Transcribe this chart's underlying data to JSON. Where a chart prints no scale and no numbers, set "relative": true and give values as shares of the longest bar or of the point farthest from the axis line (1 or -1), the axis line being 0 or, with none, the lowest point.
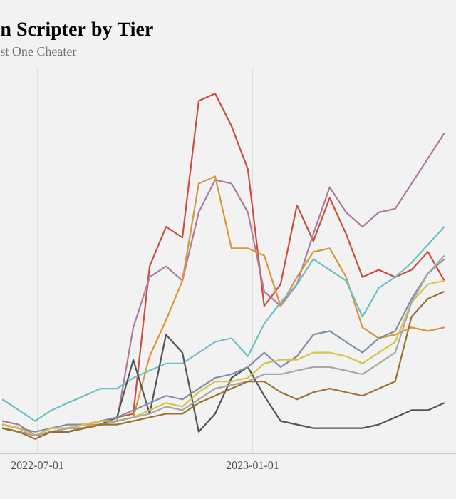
{
  "chart_data": {
    "type": "line",
    "title": "n Scripter by Tier",
    "subtitle": "st One Cheater",
    "relative": true,
    "grid": true,
    "x": [
      "2022-06-01",
      "2022-06-15",
      "2022-06-29",
      "2022-07-13",
      "2022-07-27",
      "2022-08-10",
      "2022-08-24",
      "2022-09-07",
      "2022-09-21",
      "2022-10-05",
      "2022-10-19",
      "2022-11-02",
      "2022-11-16",
      "2022-11-30",
      "2022-12-14",
      "2022-12-28",
      "2023-01-11",
      "2023-01-25",
      "2023-02-08",
      "2023-02-22",
      "2023-03-08",
      "2023-03-22",
      "2023-04-05",
      "2023-04-19",
      "2023-05-03",
      "2023-05-17",
      "2023-05-31",
      "2023-06-14"
    ],
    "xlim": [
      "2022-05-30",
      "2023-06-24"
    ],
    "xticks": [
      {
        "value": "2022-07-01",
        "label": "2022-07-01"
      },
      {
        "value": "2023-01-01",
        "label": "2023-01-01"
      }
    ],
    "series": [
      {
        "color": "#c8503f",
        "values": [
          0.08,
          0.07,
          0.05,
          0.06,
          0.06,
          0.07,
          0.08,
          0.1,
          0.11,
          0.52,
          0.63,
          0.6,
          0.98,
          1,
          0.91,
          0.79,
          0.41,
          0.47,
          0.69,
          0.59,
          0.71,
          0.61,
          0.49,
          0.51,
          0.49,
          0.51,
          0.56,
          0.48
        ]
      },
      {
        "color": "#b07aa1",
        "values": [
          0.09,
          0.08,
          0.05,
          0.06,
          0.07,
          0.07,
          0.08,
          0.09,
          0.35,
          0.49,
          0.52,
          0.48,
          0.67,
          0.76,
          0.75,
          0.67,
          0.45,
          0.41,
          0.47,
          0.61,
          0.74,
          0.67,
          0.63,
          0.67,
          0.68,
          0.75,
          0.82,
          0.89
        ]
      },
      {
        "color": "#d9963a",
        "values": [
          0.07,
          0.06,
          0.05,
          0.06,
          0.07,
          0.08,
          0.08,
          0.09,
          0.1,
          0.27,
          0.37,
          0.48,
          0.75,
          0.77,
          0.57,
          0.57,
          0.55,
          0.41,
          0.49,
          0.56,
          0.57,
          0.49,
          0.35,
          0.32,
          0.33,
          0.35,
          0.34,
          0.35
        ]
      },
      {
        "color": "#6cc0c8",
        "values": [
          0.15,
          0.12,
          0.09,
          0.12,
          0.14,
          0.16,
          0.18,
          0.18,
          0.21,
          0.23,
          0.25,
          0.25,
          0.28,
          0.31,
          0.32,
          0.27,
          0.36,
          0.42,
          0.47,
          0.54,
          0.51,
          0.48,
          0.38,
          0.46,
          0.49,
          0.53,
          0.58,
          0.63
        ]
      },
      {
        "color": "#555555",
        "values": [
          0.07,
          0.06,
          0.05,
          0.06,
          0.06,
          0.07,
          0.08,
          0.1,
          0.26,
          0.11,
          0.33,
          0.28,
          0.06,
          0.11,
          0.21,
          0.24,
          0.16,
          0.09,
          0.08,
          0.07,
          0.07,
          0.07,
          0.07,
          0.08,
          0.1,
          0.12,
          0.12,
          0.14
        ]
      },
      {
        "color": "#7f8fa6",
        "values": [
          0.08,
          0.07,
          0.06,
          0.07,
          0.08,
          0.08,
          0.09,
          0.1,
          0.12,
          0.14,
          0.16,
          0.15,
          0.18,
          0.21,
          0.22,
          0.24,
          0.28,
          0.24,
          0.27,
          0.33,
          0.34,
          0.31,
          0.28,
          0.32,
          0.34,
          0.43,
          0.5,
          0.54
        ]
      },
      {
        "color": "#d8c24b",
        "values": [
          0.08,
          0.07,
          0.05,
          0.07,
          0.07,
          0.08,
          0.09,
          0.09,
          0.1,
          0.12,
          0.14,
          0.13,
          0.17,
          0.2,
          0.2,
          0.21,
          0.25,
          0.26,
          0.26,
          0.28,
          0.28,
          0.27,
          0.25,
          0.28,
          0.31,
          0.42,
          0.47,
          0.48
        ]
      },
      {
        "color": "#a8a8a8",
        "values": [
          0.07,
          0.06,
          0.05,
          0.06,
          0.07,
          0.07,
          0.08,
          0.09,
          0.1,
          0.11,
          0.13,
          0.12,
          0.15,
          0.18,
          0.19,
          0.2,
          0.22,
          0.22,
          0.23,
          0.24,
          0.24,
          0.23,
          0.22,
          0.25,
          0.28,
          0.42,
          0.5,
          0.55
        ]
      },
      {
        "color": "#9a7330",
        "values": [
          0.07,
          0.06,
          0.04,
          0.06,
          0.06,
          0.07,
          0.08,
          0.08,
          0.09,
          0.1,
          0.11,
          0.11,
          0.14,
          0.16,
          0.18,
          0.2,
          0.2,
          0.17,
          0.15,
          0.17,
          0.18,
          0.17,
          0.16,
          0.18,
          0.2,
          0.38,
          0.43,
          0.45
        ]
      }
    ]
  }
}
